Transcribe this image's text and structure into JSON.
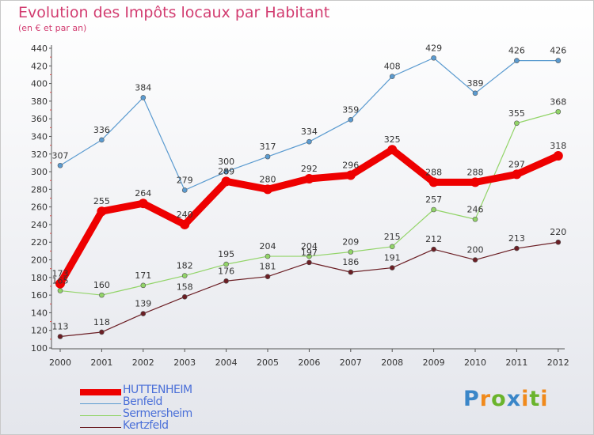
{
  "title": "Evolution des Impôts locaux par Habitant",
  "subtitle": "(en € et par an)",
  "logo": {
    "text": "Proxiti",
    "letters": [
      {
        "ch": "P",
        "color": "#3a86c8"
      },
      {
        "ch": "r",
        "color": "#f08a1c"
      },
      {
        "ch": "o",
        "color": "#6ab42c"
      },
      {
        "ch": "x",
        "color": "#3a86c8"
      },
      {
        "ch": "i",
        "color": "#f08a1c"
      },
      {
        "ch": "t",
        "color": "#6ab42c"
      },
      {
        "ch": "i",
        "color": "#f08a1c"
      }
    ]
  },
  "chart_data": {
    "type": "line",
    "title": "Evolution des Impôts locaux par Habitant",
    "subtitle": "(en € et par an)",
    "x": [
      "2000",
      "2001",
      "2002",
      "2003",
      "2004",
      "2005",
      "2006",
      "2007",
      "2008",
      "2009",
      "2010",
      "2011",
      "2012"
    ],
    "ylim": [
      100,
      440
    ],
    "yticks": [
      100,
      120,
      140,
      160,
      180,
      200,
      220,
      240,
      260,
      280,
      300,
      320,
      340,
      360,
      380,
      400,
      420,
      440
    ],
    "grid": false,
    "legend": "bottom-left",
    "series": [
      {
        "name": "HUTTENHEIM",
        "color": "#ee0000",
        "values": [
          173,
          255,
          264,
          240,
          289,
          280,
          292,
          296,
          325,
          288,
          288,
          297,
          318
        ]
      },
      {
        "name": "Benfeld",
        "color": "#5b9bd0",
        "values": [
          307,
          336,
          384,
          279,
          300,
          317,
          334,
          359,
          408,
          429,
          389,
          426,
          426
        ]
      },
      {
        "name": "Sermersheim",
        "color": "#92d468",
        "values": [
          165,
          160,
          171,
          182,
          195,
          204,
          204,
          209,
          215,
          257,
          246,
          355,
          368
        ]
      },
      {
        "name": "Kertzfeld",
        "color": "#6b1e24",
        "values": [
          113,
          118,
          139,
          158,
          176,
          181,
          197,
          186,
          191,
          212,
          200,
          213,
          220
        ]
      }
    ]
  }
}
